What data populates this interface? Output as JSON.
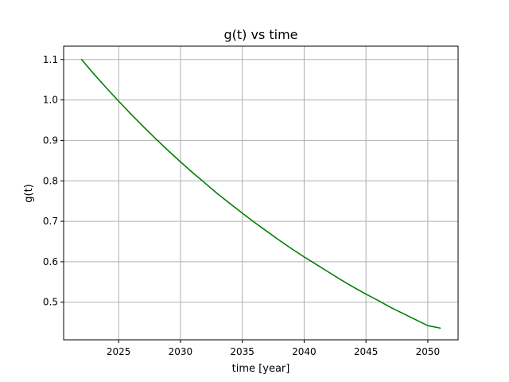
{
  "chart_data": {
    "type": "line",
    "title": "g(t) vs time",
    "xlabel": "time [year]",
    "ylabel": "g(t)",
    "xlim": [
      2020.55,
      2052.45
    ],
    "ylim": [
      0.407,
      1.133
    ],
    "grid": true,
    "xticks": [
      2025,
      2030,
      2035,
      2040,
      2045,
      2050
    ],
    "xtick_labels": [
      "2025",
      "2030",
      "2035",
      "2040",
      "2045",
      "2050"
    ],
    "yticks": [
      0.5,
      0.6,
      0.7,
      0.8,
      0.9,
      1.0,
      1.1
    ],
    "ytick_labels": [
      "0.5",
      "0.6",
      "0.7",
      "0.8",
      "0.9",
      "1.0",
      "1.1"
    ],
    "series": [
      {
        "color": "#008000",
        "x": [
          2022,
          2023,
          2024,
          2025,
          2026,
          2027,
          2028,
          2029,
          2030,
          2031,
          2032,
          2033,
          2034,
          2035,
          2036,
          2037,
          2038,
          2039,
          2040,
          2041,
          2042,
          2043,
          2044,
          2045,
          2046,
          2047,
          2048,
          2049,
          2050,
          2051
        ],
        "y": [
          1.1,
          1.064,
          1.03,
          0.997,
          0.965,
          0.934,
          0.904,
          0.875,
          0.847,
          0.82,
          0.794,
          0.768,
          0.744,
          0.72,
          0.697,
          0.675,
          0.653,
          0.632,
          0.612,
          0.593,
          0.574,
          0.555,
          0.537,
          0.52,
          0.504,
          0.487,
          0.472,
          0.457,
          0.442,
          0.436
        ]
      }
    ]
  }
}
